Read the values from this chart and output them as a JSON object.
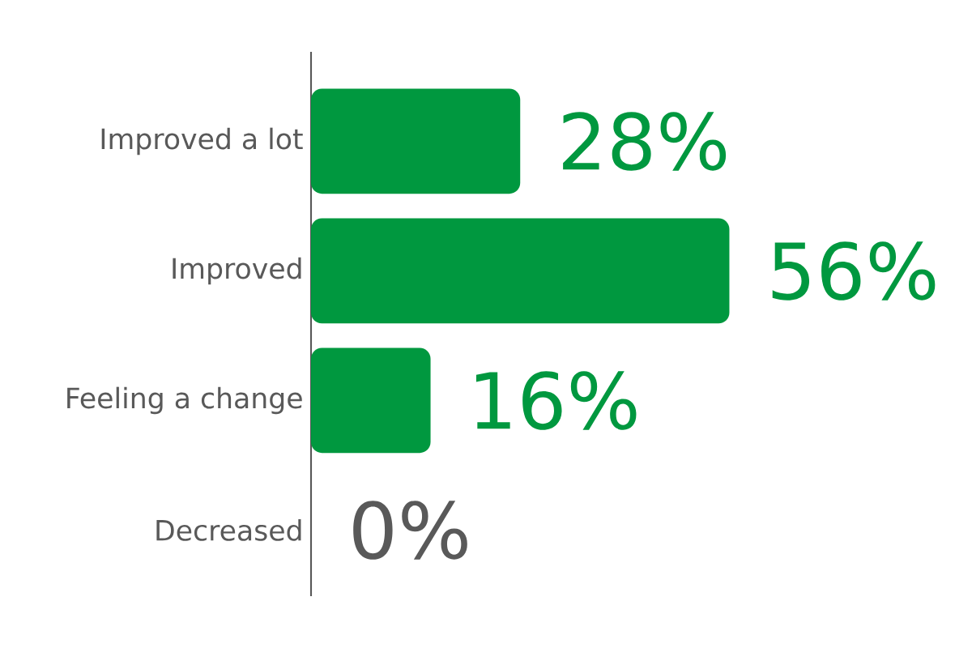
{
  "chart_data": {
    "type": "bar",
    "orientation": "horizontal",
    "categories": [
      "Improved a lot",
      "Improved",
      "Feeling a change",
      "Decreased"
    ],
    "values": [
      28,
      56,
      16,
      0
    ],
    "color": "#00983f",
    "value_labels": [
      "28%",
      "56%",
      "16%",
      "0%"
    ]
  }
}
